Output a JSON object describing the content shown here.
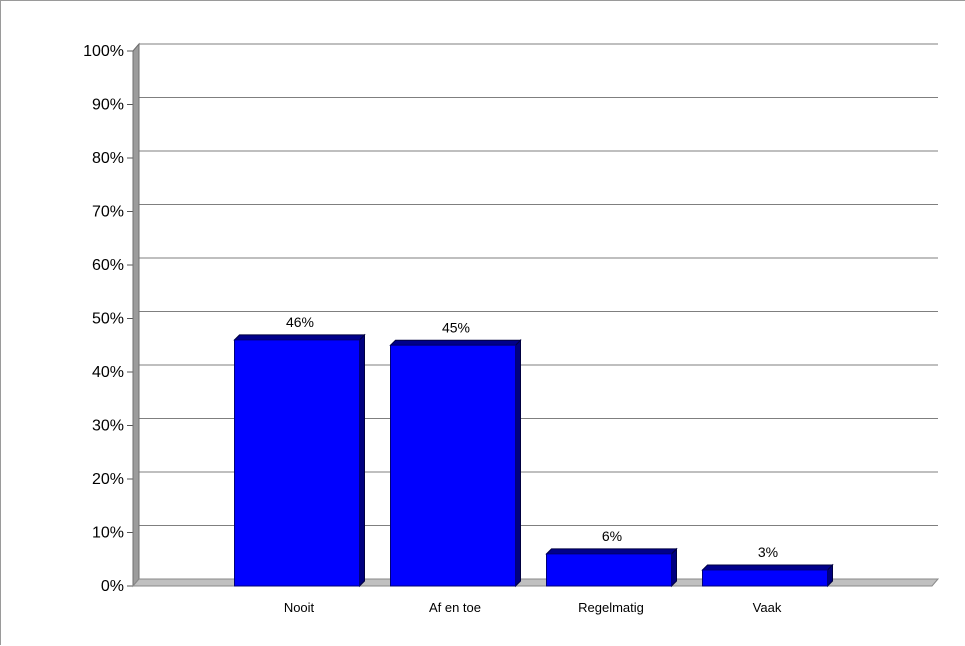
{
  "chart_data": {
    "type": "bar",
    "categories": [
      "Nooit",
      "Af en toe",
      "Regelmatig",
      "Vaak"
    ],
    "values": [
      46,
      45,
      6,
      3
    ],
    "value_labels": [
      "46%",
      "45%",
      "6%",
      "3%"
    ],
    "y_ticks": [
      "0%",
      "10%",
      "20%",
      "30%",
      "40%",
      "50%",
      "60%",
      "70%",
      "80%",
      "90%",
      "100%"
    ],
    "ylim": [
      0,
      100
    ],
    "title": "",
    "xlabel": "",
    "ylabel": "",
    "grid": true,
    "legend": "none",
    "bar_color": "#0000ff",
    "bar_edge_color": "#00007a",
    "bar_side_color": "#000080",
    "bar_top_color": "#00008b"
  }
}
